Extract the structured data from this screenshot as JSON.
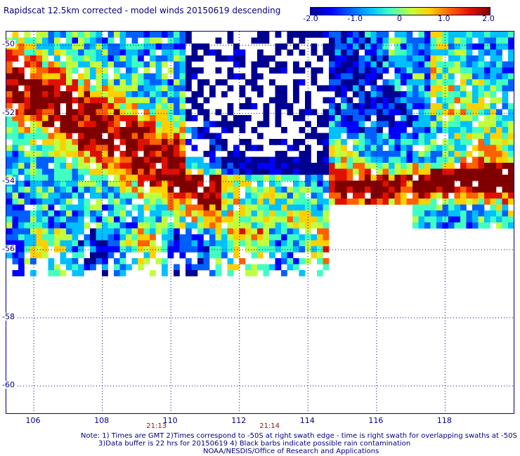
{
  "title": "Rapidscat 12.5km corrected - model winds 20150619 descending",
  "colorbar": {
    "ticks": [
      {
        "value": -2.0,
        "label": "-2.0"
      },
      {
        "value": -1.0,
        "label": "-1.0"
      },
      {
        "value": 0,
        "label": "0"
      },
      {
        "value": 1.0,
        "label": "1.0"
      },
      {
        "value": 2.0,
        "label": "2.0"
      }
    ],
    "colors": [
      "#000090",
      "#0000ff",
      "#0060ff",
      "#00c0ff",
      "#40ffc0",
      "#c0ff40",
      "#ffd000",
      "#ff6000",
      "#e01000",
      "#800000"
    ]
  },
  "map": {
    "lon_range": [
      105.2,
      120.0
    ],
    "lat_range": [
      -60.8,
      -49.6
    ],
    "lat_ticks": [
      "-50",
      "-52",
      "-54",
      "-56",
      "-58",
      "-60"
    ],
    "lon_ticks": [
      "106",
      "108",
      "110",
      "112",
      "114",
      "116",
      "118"
    ],
    "pass_times": [
      {
        "label": "21:13",
        "lon": 109.6
      },
      {
        "label": "21:14",
        "lon": 112.9
      }
    ],
    "grid_lines": true
  },
  "chart_data": {
    "type": "heatmap",
    "title": "Rapidscat 12.5km corrected - model winds 20150619 descending",
    "colorbar_range": [
      -2.0,
      2.0
    ],
    "x_axis": "longitude",
    "y_axis": "latitude",
    "ylim": [
      -60.8,
      -49.6
    ],
    "xlim": [
      105.2,
      120.0
    ],
    "swaths": [
      {
        "lon_range": [
          105.2,
          114.6
        ],
        "lat_range": [
          -56.8,
          -49.6
        ]
      },
      {
        "lon_range": [
          114.6,
          120.0
        ],
        "lat_range": [
          -55.3,
          -49.6
        ]
      }
    ]
  },
  "notes": {
    "line1": "Note: 1) Times are GMT 2)Times correspond to -50S at right swath edge - time is right swath for overlapping swaths at -50S",
    "line2": "3)Data buffer is 22 hrs for 20150619 4) Black barbs indicate possible rain contamination",
    "line3": "NOAA/NESDIS/Office of Research and Applications"
  }
}
